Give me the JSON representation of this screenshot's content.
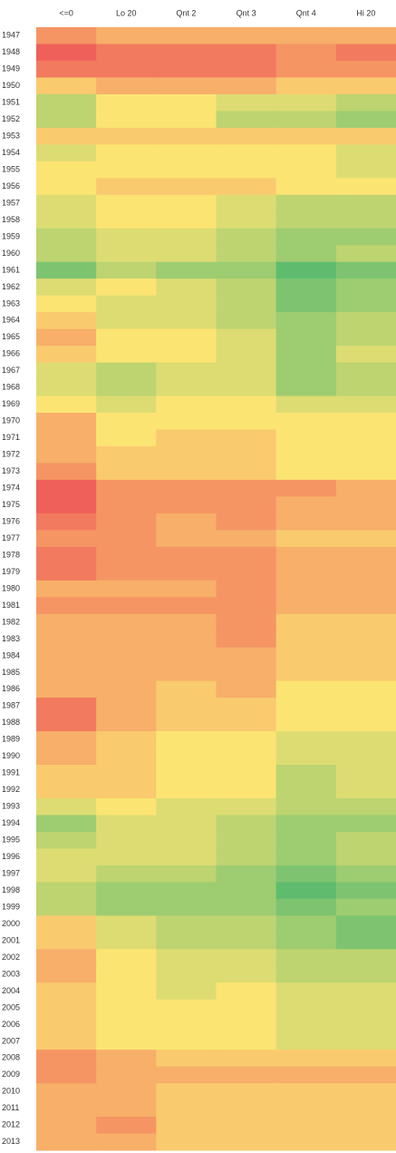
{
  "chart_data": {
    "type": "heatmap",
    "categories": [
      "<=0",
      "Lo 20",
      "Qnt 2",
      "Qnt 3",
      "Qnt 4",
      "Hi 20"
    ],
    "rows": [
      "1947",
      "1948",
      "1949",
      "1950",
      "1951",
      "1952",
      "1953",
      "1954",
      "1955",
      "1956",
      "1957",
      "1958",
      "1959",
      "1960",
      "1961",
      "1962",
      "1963",
      "1964",
      "1965",
      "1966",
      "1967",
      "1968",
      "1969",
      "1970",
      "1971",
      "1972",
      "1973",
      "1974",
      "1975",
      "1976",
      "1977",
      "1978",
      "1979",
      "1980",
      "1981",
      "1982",
      "1983",
      "1984",
      "1985",
      "1986",
      "1987",
      "1988",
      "1989",
      "1990",
      "1991",
      "1992",
      "1993",
      "1994",
      "1995",
      "1996",
      "1997",
      "1998",
      "1999",
      "2000",
      "2001",
      "2002",
      "2003",
      "2004",
      "2005",
      "2006",
      "2007",
      "2008",
      "2009",
      "2010",
      "2011",
      "2012",
      "2013"
    ],
    "values": [
      [
        2,
        3,
        3,
        3,
        3,
        3
      ],
      [
        0,
        1,
        1,
        1,
        2,
        1
      ],
      [
        1,
        1,
        1,
        1,
        2,
        2
      ],
      [
        4,
        3,
        3,
        3,
        4,
        4
      ],
      [
        7,
        5,
        5,
        6,
        6,
        7
      ],
      [
        7,
        5,
        5,
        7,
        7,
        8
      ],
      [
        4,
        4,
        4,
        4,
        4,
        4
      ],
      [
        6,
        5,
        5,
        5,
        5,
        6
      ],
      [
        5,
        5,
        5,
        5,
        5,
        6
      ],
      [
        5,
        4,
        4,
        4,
        5,
        5
      ],
      [
        6,
        5,
        5,
        6,
        7,
        7
      ],
      [
        6,
        5,
        5,
        6,
        7,
        7
      ],
      [
        7,
        6,
        6,
        7,
        8,
        8
      ],
      [
        7,
        6,
        6,
        7,
        8,
        7
      ],
      [
        9,
        7,
        8,
        8,
        10,
        9
      ],
      [
        6,
        5,
        6,
        7,
        9,
        8
      ],
      [
        5,
        6,
        6,
        7,
        9,
        8
      ],
      [
        4,
        6,
        6,
        7,
        8,
        7
      ],
      [
        3,
        5,
        5,
        6,
        8,
        7
      ],
      [
        4,
        5,
        5,
        6,
        8,
        6
      ],
      [
        6,
        7,
        6,
        6,
        8,
        7
      ],
      [
        6,
        7,
        6,
        6,
        8,
        7
      ],
      [
        5,
        6,
        5,
        5,
        6,
        6
      ],
      [
        3,
        5,
        5,
        5,
        5,
        5
      ],
      [
        3,
        5,
        4,
        4,
        5,
        5
      ],
      [
        3,
        4,
        4,
        4,
        5,
        5
      ],
      [
        2,
        4,
        4,
        4,
        5,
        5
      ],
      [
        0,
        2,
        2,
        2,
        2,
        3
      ],
      [
        0,
        2,
        2,
        2,
        3,
        3
      ],
      [
        1,
        2,
        3,
        2,
        3,
        3
      ],
      [
        2,
        2,
        3,
        3,
        4,
        4
      ],
      [
        1,
        2,
        2,
        2,
        3,
        3
      ],
      [
        1,
        2,
        2,
        2,
        3,
        3
      ],
      [
        3,
        3,
        3,
        2,
        3,
        3
      ],
      [
        2,
        2,
        2,
        2,
        3,
        3
      ],
      [
        3,
        3,
        3,
        2,
        4,
        4
      ],
      [
        3,
        3,
        3,
        2,
        4,
        4
      ],
      [
        3,
        3,
        3,
        3,
        4,
        4
      ],
      [
        3,
        3,
        3,
        3,
        4,
        4
      ],
      [
        3,
        3,
        4,
        3,
        5,
        5
      ],
      [
        1,
        3,
        4,
        4,
        5,
        5
      ],
      [
        1,
        3,
        4,
        4,
        5,
        5
      ],
      [
        3,
        4,
        5,
        5,
        6,
        6
      ],
      [
        3,
        4,
        5,
        5,
        6,
        6
      ],
      [
        4,
        4,
        5,
        5,
        7,
        6
      ],
      [
        4,
        4,
        5,
        5,
        7,
        6
      ],
      [
        6,
        5,
        6,
        6,
        7,
        7
      ],
      [
        8,
        6,
        6,
        7,
        8,
        8
      ],
      [
        7,
        6,
        6,
        7,
        8,
        7
      ],
      [
        6,
        6,
        6,
        7,
        8,
        7
      ],
      [
        6,
        7,
        7,
        8,
        9,
        8
      ],
      [
        7,
        8,
        8,
        8,
        10,
        9
      ],
      [
        7,
        8,
        8,
        8,
        9,
        8
      ],
      [
        4,
        6,
        7,
        7,
        8,
        9
      ],
      [
        4,
        6,
        7,
        7,
        8,
        9
      ],
      [
        3,
        5,
        6,
        6,
        7,
        7
      ],
      [
        3,
        5,
        6,
        6,
        7,
        7
      ],
      [
        4,
        5,
        6,
        5,
        6,
        6
      ],
      [
        4,
        5,
        5,
        5,
        6,
        6
      ],
      [
        4,
        5,
        5,
        5,
        6,
        6
      ],
      [
        4,
        5,
        5,
        5,
        6,
        6
      ],
      [
        2,
        3,
        4,
        4,
        4,
        4
      ],
      [
        2,
        3,
        3,
        3,
        3,
        3
      ],
      [
        3,
        3,
        4,
        4,
        4,
        4
      ],
      [
        3,
        3,
        4,
        4,
        4,
        4
      ],
      [
        3,
        2,
        4,
        4,
        4,
        4
      ],
      [
        3,
        3,
        4,
        4,
        4,
        4
      ]
    ],
    "zlim": [
      0,
      10
    ],
    "colors": [
      "#f0605a",
      "#fce473",
      "#5fbc6f"
    ]
  }
}
